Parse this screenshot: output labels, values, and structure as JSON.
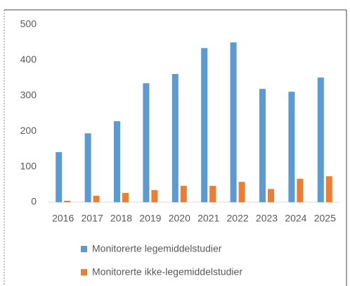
{
  "chart_data": {
    "type": "bar",
    "categories": [
      "2016",
      "2017",
      "2018",
      "2019",
      "2020",
      "2021",
      "2022",
      "2023",
      "2024",
      "2025"
    ],
    "series": [
      {
        "name": "Monitorerte legemiddelstudier",
        "color": "#5b9bd5",
        "values": [
          141,
          194,
          228,
          335,
          361,
          434,
          450,
          319,
          311,
          351
        ]
      },
      {
        "name": "Monitorerte ikke-legemiddelstudier",
        "color": "#ed7d31",
        "values": [
          4,
          18,
          26,
          34,
          46,
          46,
          57,
          37,
          66,
          73
        ]
      }
    ],
    "ylim": [
      0,
      500
    ],
    "yticks": [
      0,
      100,
      200,
      300,
      400,
      500
    ],
    "grid": false
  }
}
